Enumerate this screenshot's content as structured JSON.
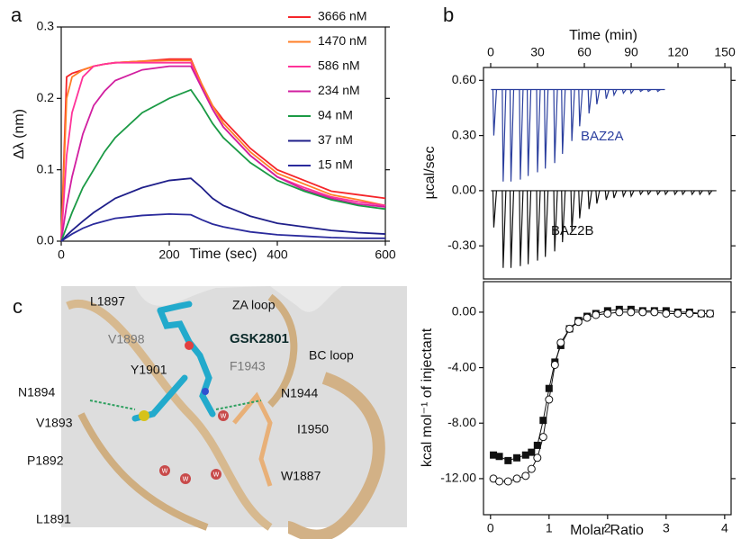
{
  "chart_data": [
    {
      "type": "line",
      "panel_label": "a",
      "xlabel": "Time (sec)",
      "ylabel": "Δλ (nm)",
      "legend": "upper right",
      "xlim": [
        0,
        600
      ],
      "ylim": [
        0,
        0.3
      ],
      "xticks": [
        0,
        200,
        400,
        600
      ],
      "yticks": [
        {
          "value": 0,
          "label": "0.0"
        },
        0.1,
        0.2,
        0.3
      ],
      "x": [
        0,
        10,
        20,
        40,
        60,
        80,
        100,
        150,
        200,
        240,
        260,
        280,
        300,
        350,
        400,
        450,
        500,
        550,
        600
      ],
      "series": [
        {
          "name": "3666 nM",
          "color": "#f5252a",
          "values": [
            0,
            0.23,
            0.235,
            0.24,
            0.245,
            0.248,
            0.25,
            0.252,
            0.255,
            0.255,
            0.22,
            0.19,
            0.17,
            0.13,
            0.1,
            0.085,
            0.07,
            0.065,
            0.06
          ]
        },
        {
          "name": "1470 nM",
          "color": "#ff7f27",
          "values": [
            0,
            0.2,
            0.23,
            0.24,
            0.245,
            0.248,
            0.25,
            0.252,
            0.253,
            0.253,
            0.22,
            0.19,
            0.165,
            0.125,
            0.095,
            0.08,
            0.065,
            0.058,
            0.05
          ]
        },
        {
          "name": "586 nM",
          "color": "#ff3399",
          "values": [
            0,
            0.12,
            0.18,
            0.23,
            0.245,
            0.248,
            0.25,
            0.25,
            0.25,
            0.25,
            0.215,
            0.185,
            0.16,
            0.12,
            0.09,
            0.075,
            0.062,
            0.055,
            0.05
          ]
        },
        {
          "name": "234 nM",
          "color": "#d11fa0",
          "values": [
            0,
            0.05,
            0.09,
            0.15,
            0.19,
            0.21,
            0.225,
            0.24,
            0.245,
            0.245,
            0.215,
            0.185,
            0.16,
            0.12,
            0.09,
            0.072,
            0.06,
            0.052,
            0.048
          ]
        },
        {
          "name": "94 nM",
          "color": "#1b9a45",
          "values": [
            0,
            0.02,
            0.04,
            0.075,
            0.1,
            0.125,
            0.145,
            0.18,
            0.2,
            0.212,
            0.19,
            0.165,
            0.145,
            0.11,
            0.085,
            0.07,
            0.058,
            0.05,
            0.045
          ]
        },
        {
          "name": "37 nM",
          "color": "#1f1f8a",
          "values": [
            0,
            0.008,
            0.015,
            0.028,
            0.04,
            0.05,
            0.06,
            0.075,
            0.085,
            0.088,
            0.075,
            0.06,
            0.05,
            0.035,
            0.025,
            0.02,
            0.015,
            0.012,
            0.01
          ]
        },
        {
          "name": "15 nM",
          "color": "#2a2a9c",
          "values": [
            0,
            0.005,
            0.01,
            0.018,
            0.024,
            0.028,
            0.032,
            0.036,
            0.038,
            0.037,
            0.03,
            0.024,
            0.02,
            0.013,
            0.009,
            0.007,
            0.005,
            0.004,
            0.004
          ]
        }
      ]
    },
    {
      "type": "spikes",
      "panel_label": "b",
      "xlabel": "Time (min)",
      "ylabel": "µcal/sec",
      "xlim": [
        -4.6,
        154
      ],
      "ylim": [
        -0.48,
        0.67
      ],
      "xticks": [
        0,
        30,
        60,
        90,
        120,
        150
      ],
      "yticks": [
        {
          "value": 0.6,
          "label": "0.60"
        },
        {
          "value": 0.3,
          "label": "0.30"
        },
        {
          "value": 0,
          "label": "0.00"
        },
        {
          "value": -0.3,
          "label": "-0.30"
        }
      ],
      "series": [
        {
          "name": "BAZ2A",
          "color": "#2b3f9e",
          "baseline": 0.55,
          "x": [
            2,
            8,
            13,
            19,
            24,
            30,
            35,
            41,
            46,
            52,
            57,
            63,
            68,
            74,
            79,
            85,
            90,
            96,
            101,
            107
          ],
          "values": [
            0.3,
            0.05,
            0.05,
            0.06,
            0.08,
            0.1,
            0.12,
            0.15,
            0.2,
            0.27,
            0.35,
            0.42,
            0.47,
            0.5,
            0.52,
            0.53,
            0.53,
            0.54,
            0.54,
            0.54
          ]
        },
        {
          "name": "BAZ2B",
          "color": "#111111",
          "baseline": 0,
          "x": [
            2,
            8,
            13,
            19,
            24,
            30,
            35,
            41,
            46,
            52,
            57,
            63,
            68,
            74,
            79,
            85,
            90,
            96,
            101,
            107,
            112,
            118,
            123,
            129,
            134,
            140
          ],
          "values": [
            -0.2,
            -0.42,
            -0.42,
            -0.41,
            -0.4,
            -0.38,
            -0.36,
            -0.33,
            -0.28,
            -0.22,
            -0.15,
            -0.1,
            -0.07,
            -0.05,
            -0.04,
            -0.03,
            -0.03,
            -0.02,
            -0.02,
            -0.02,
            -0.02,
            -0.02,
            -0.02,
            -0.02,
            -0.02,
            -0.02
          ]
        }
      ]
    },
    {
      "type": "scatter",
      "xlabel": "Molar Ratio",
      "ylabel": "kcal mol⁻¹ of injectant",
      "xlim": [
        -0.12,
        4.11
      ],
      "ylim": [
        -14.6,
        2.2
      ],
      "xticks": [
        0,
        1,
        2,
        3,
        4
      ],
      "yticks": [
        {
          "value": 0,
          "label": "0.00"
        },
        {
          "value": -4,
          "label": "-4.00"
        },
        {
          "value": -8,
          "label": "-8.00"
        },
        {
          "value": -12,
          "label": "-12.00"
        }
      ],
      "x": [
        0.05,
        0.15,
        0.3,
        0.45,
        0.6,
        0.7,
        0.8,
        0.9,
        1.0,
        1.1,
        1.2,
        1.35,
        1.5,
        1.65,
        1.8,
        2.0,
        2.2,
        2.4,
        2.6,
        2.8,
        3.0,
        3.2,
        3.4,
        3.6,
        3.75
      ],
      "series": [
        {
          "marker": "square",
          "color": "#111111",
          "values": [
            -10.3,
            -10.4,
            -10.7,
            -10.5,
            -10.3,
            -10.1,
            -9.6,
            -7.8,
            -5.5,
            -3.6,
            -2.4,
            -1.2,
            -0.6,
            -0.3,
            -0.1,
            0.1,
            0.2,
            0.2,
            0.1,
            0.1,
            0.1,
            0,
            0,
            -0.1,
            -0.1
          ]
        },
        {
          "marker": "circle",
          "color": "#111111",
          "values": [
            -12.0,
            -12.2,
            -12.2,
            -12.0,
            -11.8,
            -11.3,
            -10.5,
            -9.0,
            -6.3,
            -3.8,
            -2.2,
            -1.2,
            -0.7,
            -0.4,
            -0.2,
            -0.1,
            0,
            0,
            0,
            0,
            -0.1,
            -0.1,
            -0.1,
            -0.1,
            -0.1
          ]
        }
      ]
    }
  ],
  "structure_panel": {
    "panel_label": "c",
    "ligand": "GSK2801",
    "labels": [
      "L1897",
      "ZA loop",
      "V1898",
      "BC loop",
      "Y1901",
      "F1943",
      "N1894",
      "N1944",
      "V1893",
      "I1950",
      "P1892",
      "W1887",
      "L1891"
    ],
    "water": "w"
  }
}
